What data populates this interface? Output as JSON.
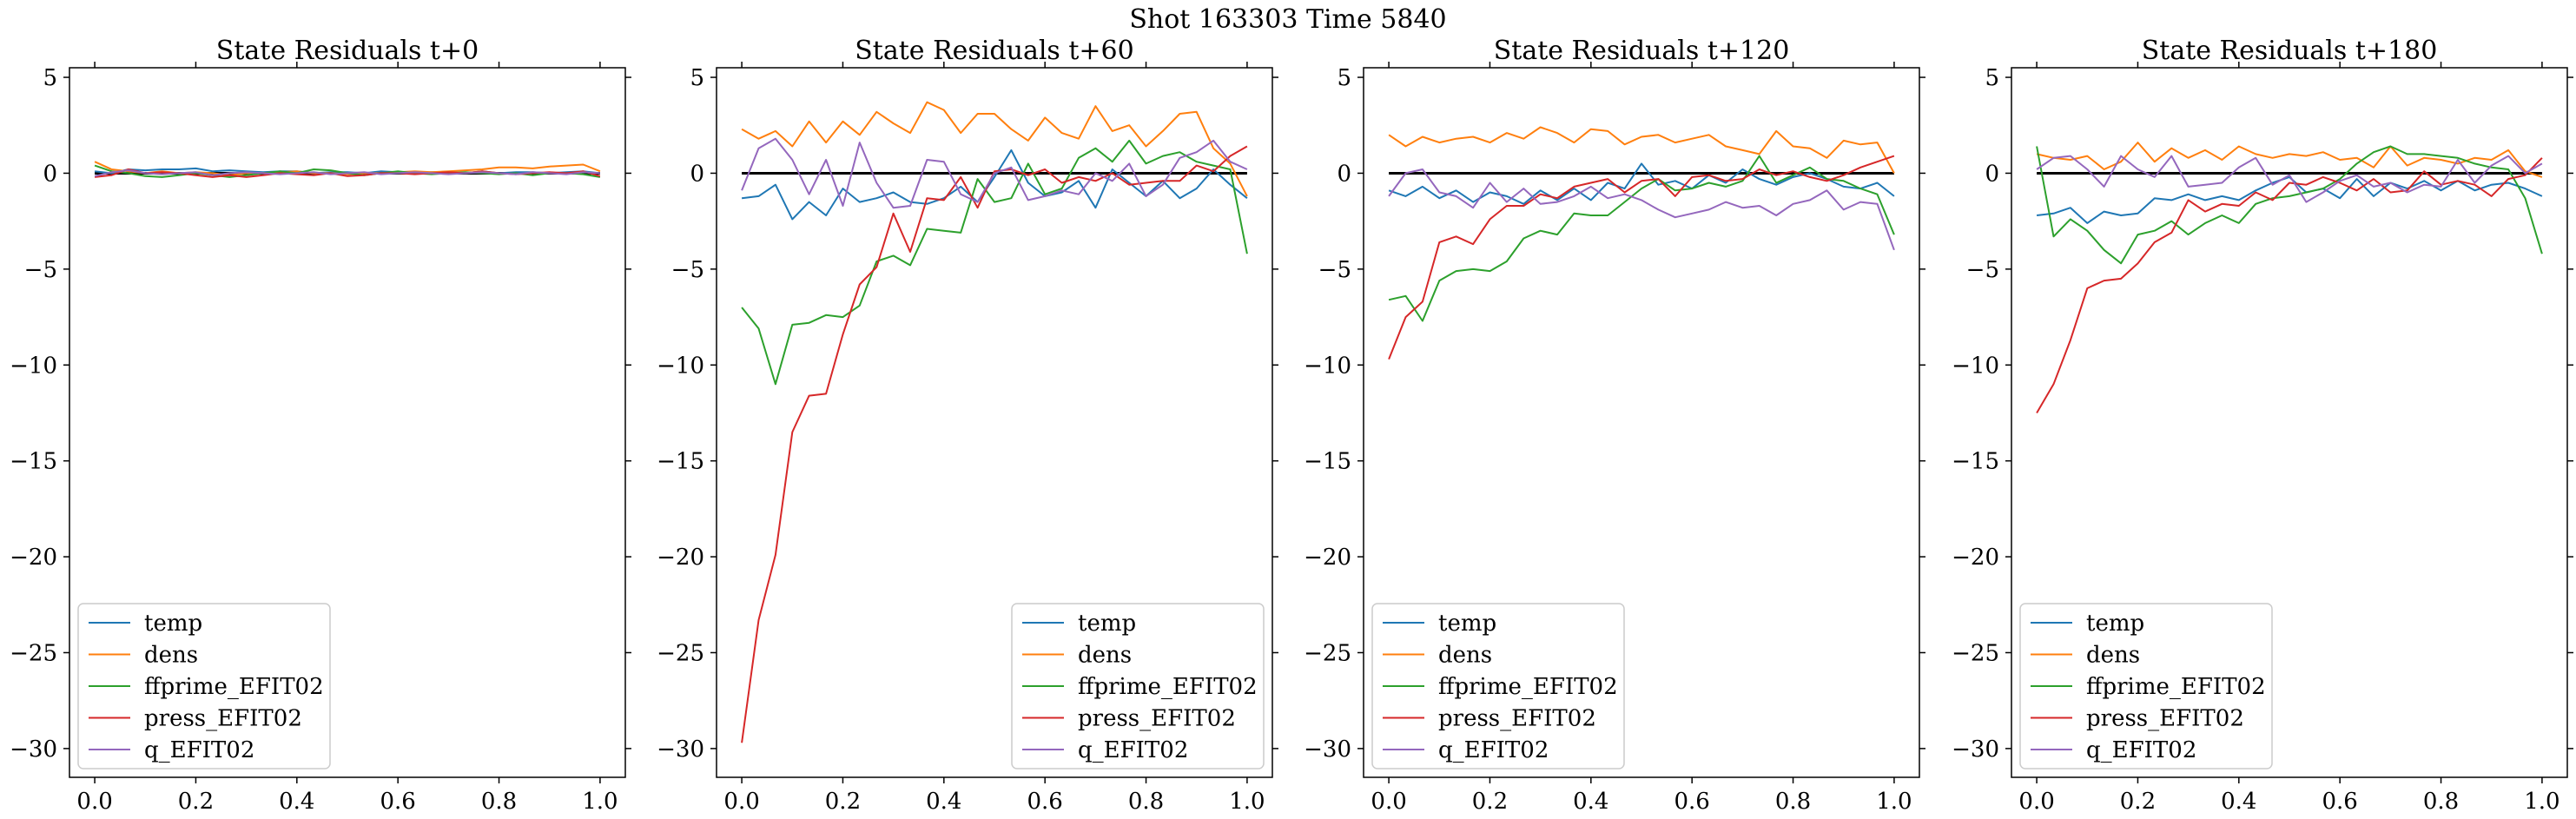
{
  "figure": {
    "suptitle": "Shot 163303   Time 5840"
  },
  "chart_data": [
    {
      "type": "line",
      "title": "State Residuals t+0",
      "xlabel": "",
      "ylabel": "",
      "xlim": [
        -0.05,
        1.05
      ],
      "ylim": [
        -31.5,
        5.5
      ],
      "xticks": [
        "0.0",
        "0.2",
        "0.4",
        "0.6",
        "0.8",
        "1.0"
      ],
      "yticks": [
        "5",
        "0",
        "−5",
        "−10",
        "−15",
        "−20",
        "−25",
        "−30"
      ],
      "legend_position": "lower left",
      "zero_line": true,
      "x": [
        0.0,
        0.0333,
        0.0667,
        0.1,
        0.1333,
        0.1667,
        0.2,
        0.2333,
        0.2667,
        0.3,
        0.3333,
        0.3667,
        0.4,
        0.4333,
        0.4667,
        0.5,
        0.5333,
        0.5667,
        0.6,
        0.6333,
        0.6667,
        0.7,
        0.7333,
        0.7667,
        0.8,
        0.8333,
        0.8667,
        0.9,
        0.9333,
        0.9667,
        1.0
      ],
      "series": [
        {
          "name": "temp",
          "color": "#1f77b4",
          "values": [
            0.1,
            0.0,
            0.2,
            0.15,
            0.2,
            0.2,
            0.25,
            0.1,
            0.15,
            0.1,
            0.05,
            0.1,
            0.1,
            0.0,
            0.05,
            0.05,
            0.0,
            0.1,
            0.05,
            0.0,
            0.05,
            0.05,
            0.0,
            0.1,
            0.0,
            0.05,
            0.05,
            0.0,
            0.05,
            0.1,
            0.0
          ]
        },
        {
          "name": "dens",
          "color": "#ff7f0e",
          "values": [
            0.6,
            0.2,
            0.1,
            0.0,
            0.1,
            0.0,
            0.05,
            0.0,
            -0.1,
            0.0,
            0.0,
            0.05,
            0.1,
            0.0,
            0.0,
            -0.05,
            0.0,
            0.0,
            0.05,
            0.1,
            0.05,
            0.1,
            0.15,
            0.2,
            0.3,
            0.3,
            0.25,
            0.35,
            0.4,
            0.45,
            0.1
          ]
        },
        {
          "name": "ffprime_EFIT02",
          "color": "#2ca02c",
          "values": [
            0.4,
            0.1,
            0.0,
            -0.15,
            -0.2,
            -0.1,
            0.0,
            -0.1,
            -0.2,
            -0.1,
            0.0,
            0.1,
            0.0,
            0.2,
            0.15,
            0.0,
            -0.1,
            0.0,
            0.1,
            0.0,
            -0.05,
            0.0,
            0.05,
            0.0,
            -0.05,
            0.0,
            -0.1,
            0.0,
            0.0,
            -0.05,
            -0.2
          ]
        },
        {
          "name": "press_EFIT02",
          "color": "#d62728",
          "values": [
            -0.2,
            -0.1,
            0.2,
            0.0,
            0.05,
            0.0,
            -0.1,
            -0.2,
            -0.1,
            -0.2,
            -0.1,
            0.0,
            -0.05,
            -0.1,
            0.0,
            -0.15,
            -0.1,
            0.0,
            0.0,
            -0.05,
            0.0,
            0.05,
            0.0,
            0.1,
            0.0,
            -0.05,
            0.0,
            0.05,
            0.0,
            0.1,
            -0.15
          ]
        },
        {
          "name": "q_EFIT02",
          "color": "#9467bd",
          "values": [
            -0.15,
            0.05,
            0.15,
            0.0,
            -0.05,
            0.0,
            0.05,
            -0.1,
            0.0,
            0.05,
            0.0,
            -0.05,
            0.0,
            0.05,
            -0.05,
            0.0,
            0.05,
            -0.05,
            0.0,
            0.05,
            0.0,
            -0.05,
            0.0,
            0.05,
            0.0,
            -0.05,
            0.05,
            0.0,
            -0.05,
            0.05,
            0.0
          ]
        }
      ]
    },
    {
      "type": "line",
      "title": "State Residuals t+60",
      "xlabel": "",
      "ylabel": "",
      "xlim": [
        -0.05,
        1.05
      ],
      "ylim": [
        -31.5,
        5.5
      ],
      "xticks": [
        "0.0",
        "0.2",
        "0.4",
        "0.6",
        "0.8",
        "1.0"
      ],
      "yticks": [
        "5",
        "0",
        "−5",
        "−10",
        "−15",
        "−20",
        "−25",
        "−30"
      ],
      "legend_position": "lower right",
      "zero_line": true,
      "x": [
        0.0,
        0.0333,
        0.0667,
        0.1,
        0.1333,
        0.1667,
        0.2,
        0.2333,
        0.2667,
        0.3,
        0.3333,
        0.3667,
        0.4,
        0.4333,
        0.4667,
        0.5,
        0.5333,
        0.5667,
        0.6,
        0.6333,
        0.6667,
        0.7,
        0.7333,
        0.7667,
        0.8,
        0.8333,
        0.8667,
        0.9,
        0.9333,
        0.9667,
        1.0
      ],
      "series": [
        {
          "name": "temp",
          "color": "#1f77b4",
          "values": [
            -1.3,
            -1.2,
            -0.6,
            -2.4,
            -1.5,
            -2.2,
            -0.8,
            -1.5,
            -1.3,
            -1.0,
            -1.5,
            -1.6,
            -1.3,
            -0.7,
            -1.5,
            -0.2,
            1.2,
            -0.5,
            -1.2,
            -1.0,
            -0.4,
            -1.8,
            0.2,
            -0.5,
            -1.2,
            -0.4,
            -1.3,
            -0.8,
            0.2,
            -0.6,
            -1.3
          ]
        },
        {
          "name": "dens",
          "color": "#ff7f0e",
          "values": [
            2.3,
            1.8,
            2.2,
            1.4,
            2.7,
            1.6,
            2.7,
            2.0,
            3.2,
            2.6,
            2.1,
            3.7,
            3.3,
            2.1,
            3.1,
            3.1,
            2.3,
            1.7,
            2.9,
            2.1,
            1.8,
            3.5,
            2.2,
            2.5,
            1.4,
            2.2,
            3.1,
            3.2,
            1.3,
            0.5,
            -1.2
          ]
        },
        {
          "name": "ffprime_EFIT02",
          "color": "#2ca02c",
          "values": [
            -7.0,
            -8.1,
            -11.0,
            -7.9,
            -7.8,
            -7.4,
            -7.5,
            -6.9,
            -4.6,
            -4.3,
            -4.8,
            -2.9,
            -3.0,
            -3.1,
            -0.3,
            -1.5,
            -1.3,
            0.5,
            -1.1,
            -0.8,
            0.8,
            1.3,
            0.6,
            1.7,
            0.5,
            0.9,
            1.1,
            0.6,
            0.4,
            0.2,
            -4.2
          ]
        },
        {
          "name": "press_EFIT02",
          "color": "#d62728",
          "values": [
            -29.7,
            -23.3,
            -19.9,
            -13.5,
            -11.6,
            -11.5,
            -8.4,
            -5.8,
            -4.9,
            -2.1,
            -4.1,
            -1.3,
            -1.4,
            -0.2,
            -1.8,
            0.1,
            0.2,
            -0.1,
            0.2,
            -0.5,
            -0.2,
            -0.4,
            0.0,
            -0.6,
            -0.5,
            -0.4,
            -0.4,
            0.4,
            0.1,
            0.9,
            1.4
          ]
        },
        {
          "name": "q_EFIT02",
          "color": "#9467bd",
          "values": [
            -0.9,
            1.3,
            1.8,
            0.7,
            -1.1,
            0.7,
            -1.7,
            1.6,
            -0.5,
            -1.8,
            -1.7,
            0.7,
            0.6,
            -1.1,
            -1.5,
            0.0,
            0.3,
            -1.4,
            -1.2,
            -0.9,
            -1.1,
            0.0,
            -0.4,
            0.5,
            -1.2,
            -0.6,
            0.8,
            1.1,
            1.7,
            0.6,
            0.2
          ]
        }
      ]
    },
    {
      "type": "line",
      "title": "State Residuals t+120",
      "xlabel": "",
      "ylabel": "",
      "xlim": [
        -0.05,
        1.05
      ],
      "ylim": [
        -31.5,
        5.5
      ],
      "xticks": [
        "0.0",
        "0.2",
        "0.4",
        "0.6",
        "0.8",
        "1.0"
      ],
      "yticks": [
        "5",
        "0",
        "−5",
        "−10",
        "−15",
        "−20",
        "−25",
        "−30"
      ],
      "legend_position": "lower left",
      "zero_line": true,
      "x": [
        0.0,
        0.0333,
        0.0667,
        0.1,
        0.1333,
        0.1667,
        0.2,
        0.2333,
        0.2667,
        0.3,
        0.3333,
        0.3667,
        0.4,
        0.4333,
        0.4667,
        0.5,
        0.5333,
        0.5667,
        0.6,
        0.6333,
        0.6667,
        0.7,
        0.7333,
        0.7667,
        0.8,
        0.8333,
        0.8667,
        0.9,
        0.9333,
        0.9667,
        1.0
      ],
      "series": [
        {
          "name": "temp",
          "color": "#1f77b4",
          "values": [
            -0.9,
            -1.2,
            -0.7,
            -1.3,
            -0.9,
            -1.5,
            -1.0,
            -1.2,
            -1.6,
            -0.9,
            -1.4,
            -0.8,
            -1.4,
            -0.5,
            -0.8,
            0.5,
            -0.6,
            -0.4,
            -0.8,
            -0.1,
            -0.5,
            0.2,
            -0.3,
            -0.6,
            -0.2,
            0.0,
            -0.3,
            -0.7,
            -0.8,
            -0.5,
            -1.2
          ]
        },
        {
          "name": "dens",
          "color": "#ff7f0e",
          "values": [
            2.0,
            1.4,
            1.9,
            1.6,
            1.8,
            1.9,
            1.6,
            2.1,
            1.8,
            2.4,
            2.1,
            1.6,
            2.3,
            2.2,
            1.5,
            1.9,
            2.0,
            1.6,
            1.8,
            2.0,
            1.4,
            1.2,
            1.0,
            2.2,
            1.4,
            1.3,
            0.8,
            1.7,
            1.5,
            1.6,
            0.0
          ]
        },
        {
          "name": "ffprime_EFIT02",
          "color": "#2ca02c",
          "values": [
            -6.6,
            -6.4,
            -7.7,
            -5.6,
            -5.1,
            -5.0,
            -5.1,
            -4.6,
            -3.4,
            -3.0,
            -3.2,
            -2.1,
            -2.2,
            -2.2,
            -1.5,
            -0.8,
            -0.3,
            -0.9,
            -0.8,
            -0.5,
            -0.7,
            -0.4,
            0.9,
            -0.5,
            -0.1,
            0.3,
            -0.3,
            -0.4,
            -0.8,
            -1.1,
            -3.2
          ]
        },
        {
          "name": "press_EFIT02",
          "color": "#d62728",
          "values": [
            -9.7,
            -7.5,
            -6.7,
            -3.6,
            -3.3,
            -3.7,
            -2.4,
            -1.7,
            -1.7,
            -1.1,
            -1.3,
            -0.7,
            -0.5,
            -0.3,
            -1.0,
            -0.4,
            -0.3,
            -1.2,
            -0.2,
            -0.1,
            -0.4,
            -0.3,
            0.2,
            -0.1,
            0.1,
            -0.2,
            -0.4,
            -0.1,
            0.3,
            0.6,
            0.9
          ]
        },
        {
          "name": "q_EFIT02",
          "color": "#9467bd",
          "values": [
            -1.2,
            0.0,
            0.2,
            -1.0,
            -1.2,
            -1.8,
            -0.5,
            -1.5,
            -0.8,
            -1.6,
            -1.5,
            -1.2,
            -0.7,
            -1.3,
            -1.1,
            -1.4,
            -1.9,
            -2.3,
            -2.1,
            -1.9,
            -1.5,
            -1.8,
            -1.7,
            -2.2,
            -1.6,
            -1.4,
            -0.9,
            -1.9,
            -1.5,
            -1.6,
            -4.0
          ]
        }
      ]
    },
    {
      "type": "line",
      "title": "State Residuals t+180",
      "xlabel": "",
      "ylabel": "",
      "xlim": [
        -0.05,
        1.05
      ],
      "ylim": [
        -31.5,
        5.5
      ],
      "xticks": [
        "0.0",
        "0.2",
        "0.4",
        "0.6",
        "0.8",
        "1.0"
      ],
      "yticks": [
        "5",
        "0",
        "−5",
        "−10",
        "−15",
        "−20",
        "−25",
        "−30"
      ],
      "legend_position": "lower left",
      "zero_line": true,
      "x": [
        0.0,
        0.0333,
        0.0667,
        0.1,
        0.1333,
        0.1667,
        0.2,
        0.2333,
        0.2667,
        0.3,
        0.3333,
        0.3667,
        0.4,
        0.4333,
        0.4667,
        0.5,
        0.5333,
        0.5667,
        0.6,
        0.6333,
        0.6667,
        0.7,
        0.7333,
        0.7667,
        0.8,
        0.8333,
        0.8667,
        0.9,
        0.9333,
        0.9667,
        1.0
      ],
      "series": [
        {
          "name": "temp",
          "color": "#1f77b4",
          "values": [
            -2.2,
            -2.1,
            -1.8,
            -2.6,
            -2.0,
            -2.2,
            -2.1,
            -1.3,
            -1.4,
            -1.1,
            -1.4,
            -1.2,
            -1.4,
            -0.9,
            -0.5,
            -0.2,
            -1.0,
            -0.8,
            -1.3,
            -0.3,
            -1.2,
            -0.5,
            -0.8,
            -0.4,
            -0.9,
            -0.4,
            -0.9,
            -0.6,
            -0.5,
            -0.8,
            -1.2
          ]
        },
        {
          "name": "dens",
          "color": "#ff7f0e",
          "values": [
            1.0,
            0.8,
            0.7,
            0.9,
            0.2,
            0.6,
            1.6,
            0.6,
            1.3,
            0.8,
            1.2,
            0.7,
            1.4,
            1.0,
            0.8,
            1.0,
            0.9,
            1.1,
            0.7,
            0.8,
            0.3,
            1.4,
            0.4,
            0.8,
            0.7,
            0.5,
            0.8,
            0.7,
            1.2,
            0.1,
            -0.2
          ]
        },
        {
          "name": "ffprime_EFIT02",
          "color": "#2ca02c",
          "values": [
            1.4,
            -3.3,
            -2.4,
            -3.0,
            -4.0,
            -4.7,
            -3.2,
            -3.0,
            -2.5,
            -3.2,
            -2.6,
            -2.2,
            -2.6,
            -1.6,
            -1.3,
            -1.2,
            -1.0,
            -0.8,
            -0.3,
            0.5,
            1.1,
            1.4,
            1.0,
            1.0,
            0.9,
            0.8,
            0.5,
            0.3,
            0.2,
            -1.3,
            -4.2
          ]
        },
        {
          "name": "press_EFIT02",
          "color": "#d62728",
          "values": [
            -12.5,
            -11.0,
            -8.7,
            -6.0,
            -5.6,
            -5.5,
            -4.7,
            -3.6,
            -3.1,
            -1.4,
            -2.0,
            -1.6,
            -1.7,
            -1.0,
            -1.4,
            -0.5,
            -0.6,
            -0.2,
            -0.5,
            -0.9,
            -0.3,
            -1.0,
            -0.9,
            0.1,
            -0.6,
            -0.4,
            -0.6,
            -1.2,
            -0.3,
            -0.1,
            0.8
          ]
        },
        {
          "name": "q_EFIT02",
          "color": "#9467bd",
          "values": [
            0.2,
            0.8,
            0.9,
            0.2,
            -0.7,
            0.9,
            0.2,
            -0.2,
            0.9,
            -0.7,
            -0.6,
            -0.5,
            0.3,
            0.8,
            -0.6,
            -0.1,
            -1.5,
            -1.0,
            -0.4,
            -0.1,
            -0.7,
            -0.5,
            -1.0,
            -0.6,
            -0.7,
            0.7,
            -0.5,
            0.4,
            0.9,
            0.0,
            0.5
          ]
        }
      ]
    }
  ]
}
